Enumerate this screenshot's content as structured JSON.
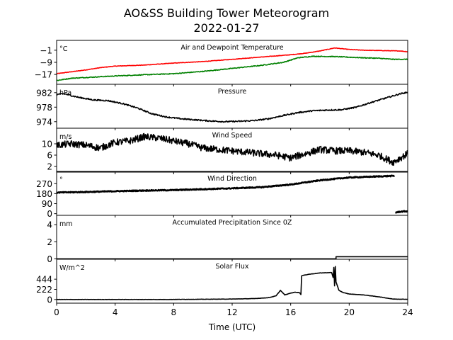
{
  "title": "AO&SS Building Tower Meteorogram",
  "subtitle": "2022-01-27",
  "chart_data": {
    "type": "line",
    "title": "AO&SS Building Tower Meteorogram",
    "subtitle": "2022-01-27",
    "x_axis": {
      "label": "Time (UTC)",
      "range": [
        0,
        24
      ],
      "ticks": [
        0,
        4,
        8,
        12,
        16,
        20,
        24
      ],
      "tick_labels": [
        "0",
        "4",
        "8",
        "12",
        "16",
        "20",
        "24"
      ]
    },
    "panels": [
      {
        "name": "Air and Dewpoint Temperature",
        "unit": "°C",
        "ylim": [
          -23.5,
          5.5
        ],
        "yticks": [
          -1,
          -9,
          -17
        ],
        "ytick_labels": [
          "−1",
          "−9",
          "−17"
        ],
        "series": [
          {
            "color": "#ff0000",
            "points": [
              [
                0,
                -16.5
              ],
              [
                2,
                -14
              ],
              [
                3,
                -12.5
              ],
              [
                4,
                -11.5
              ],
              [
                6,
                -10.8
              ],
              [
                8,
                -9.5
              ],
              [
                10,
                -8.5
              ],
              [
                12,
                -7
              ],
              [
                14,
                -5.5
              ],
              [
                16,
                -4
              ],
              [
                17,
                -3
              ],
              [
                18,
                -1.5
              ],
              [
                19,
                0.5
              ],
              [
                20,
                -0.5
              ],
              [
                21,
                -1
              ],
              [
                22,
                -1.2
              ],
              [
                23.5,
                -1.5
              ],
              [
                24,
                -2
              ]
            ],
            "noise": 0.15
          },
          {
            "color": "#008000",
            "points": [
              [
                0,
                -21
              ],
              [
                1,
                -19.5
              ],
              [
                2,
                -19
              ],
              [
                4,
                -18
              ],
              [
                6,
                -17.2
              ],
              [
                8,
                -16.5
              ],
              [
                10,
                -15
              ],
              [
                12,
                -13
              ],
              [
                14,
                -11
              ],
              [
                15.5,
                -9
              ],
              [
                16.5,
                -6
              ],
              [
                17.5,
                -5
              ],
              [
                19,
                -5.2
              ],
              [
                20,
                -5.6
              ],
              [
                21,
                -6
              ],
              [
                22,
                -6.3
              ],
              [
                23,
                -7
              ],
              [
                24,
                -7
              ]
            ],
            "noise": 0.25
          }
        ]
      },
      {
        "name": "Pressure",
        "unit": "hPa",
        "ylim": [
          972.2,
          984.3
        ],
        "yticks": [
          974,
          978,
          982
        ],
        "ytick_labels": [
          "974",
          "978",
          "982"
        ],
        "series": [
          {
            "color": "#000000",
            "points": [
              [
                0,
                981.5
              ],
              [
                0.5,
                981.7
              ],
              [
                1.5,
                980.7
              ],
              [
                2.5,
                980
              ],
              [
                3.5,
                979.8
              ],
              [
                4.5,
                979
              ],
              [
                5.5,
                977.8
              ],
              [
                6.5,
                976.2
              ],
              [
                7.5,
                975.3
              ],
              [
                8.5,
                974.8
              ],
              [
                9.5,
                974.5
              ],
              [
                10.5,
                974.2
              ],
              [
                11.5,
                974
              ],
              [
                12.5,
                974.1
              ],
              [
                13.5,
                974.3
              ],
              [
                14.5,
                974.8
              ],
              [
                15.5,
                975.7
              ],
              [
                16.5,
                976.5
              ],
              [
                17.5,
                977
              ],
              [
                18.5,
                977.2
              ],
              [
                19.5,
                977.3
              ],
              [
                20.5,
                978
              ],
              [
                21.5,
                979.3
              ],
              [
                22.5,
                980.5
              ],
              [
                23.5,
                981.7
              ],
              [
                24,
                982.1
              ]
            ],
            "noise": 0.18
          }
        ]
      },
      {
        "name": "Wind Speed",
        "unit": "m/s",
        "ylim": [
          0,
          15.5
        ],
        "yticks": [
          2,
          6,
          10
        ],
        "ytick_labels": [
          "2",
          "6",
          "10"
        ],
        "series": [
          {
            "color": "#000000",
            "points": [
              [
                0,
                9.5
              ],
              [
                1,
                10
              ],
              [
                2,
                9.5
              ],
              [
                3,
                8.5
              ],
              [
                4,
                10.5
              ],
              [
                5,
                11
              ],
              [
                6,
                12.5
              ],
              [
                7,
                12
              ],
              [
                8,
                11
              ],
              [
                9,
                10
              ],
              [
                10,
                8.5
              ],
              [
                11,
                8
              ],
              [
                12,
                7.5
              ],
              [
                13,
                7
              ],
              [
                14,
                6.5
              ],
              [
                15,
                6
              ],
              [
                16,
                5
              ],
              [
                17,
                6.5
              ],
              [
                18,
                8
              ],
              [
                19,
                7.5
              ],
              [
                20,
                7.5
              ],
              [
                21,
                7
              ],
              [
                22,
                6
              ],
              [
                23,
                3.5
              ],
              [
                24,
                6.5
              ]
            ],
            "noise": 1.2
          }
        ]
      },
      {
        "name": "Wind Direction",
        "unit": "°",
        "ylim": [
          -15,
          380
        ],
        "yticks": [
          0,
          90,
          180,
          270
        ],
        "ytick_labels": [
          "0",
          "90",
          "180",
          "270"
        ],
        "series": [
          {
            "color": "#000000",
            "points": [
              [
                0,
                190
              ],
              [
                2,
                195
              ],
              [
                4,
                202
              ],
              [
                6,
                208
              ],
              [
                8,
                212
              ],
              [
                10,
                220
              ],
              [
                12,
                228
              ],
              [
                14,
                238
              ],
              [
                16,
                262
              ],
              [
                18,
                300
              ],
              [
                20,
                325
              ],
              [
                22,
                335
              ],
              [
                23.1,
                340
              ]
            ],
            "noise": 4
          },
          {
            "color": "#000000",
            "points": [
              [
                23.15,
                10
              ],
              [
                23.5,
                18
              ],
              [
                24,
                22
              ]
            ],
            "noise": 4
          }
        ]
      },
      {
        "name": "Accumulated Precipitation Since 0Z",
        "unit": "mm",
        "ylim": [
          -0.05,
          5.1
        ],
        "yticks": [
          0,
          2,
          4
        ],
        "ytick_labels": [
          "0",
          "2",
          "4"
        ],
        "series": [
          {
            "color": "#000000",
            "points": [
              [
                0,
                0
              ],
              [
                19.1,
                0
              ],
              [
                19.1,
                0.25
              ],
              [
                24,
                0.25
              ]
            ],
            "noise": 0
          }
        ]
      },
      {
        "name": "Solar Flux",
        "unit": "W/m^2",
        "ylim": [
          -80,
          880
        ],
        "yticks": [
          0,
          222,
          444
        ],
        "ytick_labels": [
          "0",
          "222",
          "444"
        ],
        "series": [
          {
            "color": "#000000",
            "points": [
              [
                0,
                0
              ],
              [
                7.6,
                0
              ],
              [
                8,
                2
              ],
              [
                10,
                5
              ],
              [
                12,
                10
              ],
              [
                13.5,
                20
              ],
              [
                14.5,
                40
              ],
              [
                15,
                80
              ],
              [
                15.3,
                200
              ],
              [
                15.6,
                100
              ],
              [
                16,
                140
              ],
              [
                16.3,
                160
              ],
              [
                16.6,
                150
              ],
              [
                16.7,
                110
              ],
              [
                16.75,
                520
              ],
              [
                17.2,
                550
              ],
              [
                18,
                580
              ],
              [
                18.8,
                590
              ],
              [
                18.9,
                480
              ],
              [
                18.95,
                700
              ],
              [
                19.0,
                300
              ],
              [
                19.05,
                720
              ],
              [
                19.1,
                380
              ],
              [
                19.3,
                200
              ],
              [
                19.6,
                150
              ],
              [
                20,
                120
              ],
              [
                21,
                100
              ],
              [
                22,
                60
              ],
              [
                23,
                10
              ],
              [
                24,
                5
              ]
            ],
            "noise": 3
          }
        ]
      }
    ]
  }
}
